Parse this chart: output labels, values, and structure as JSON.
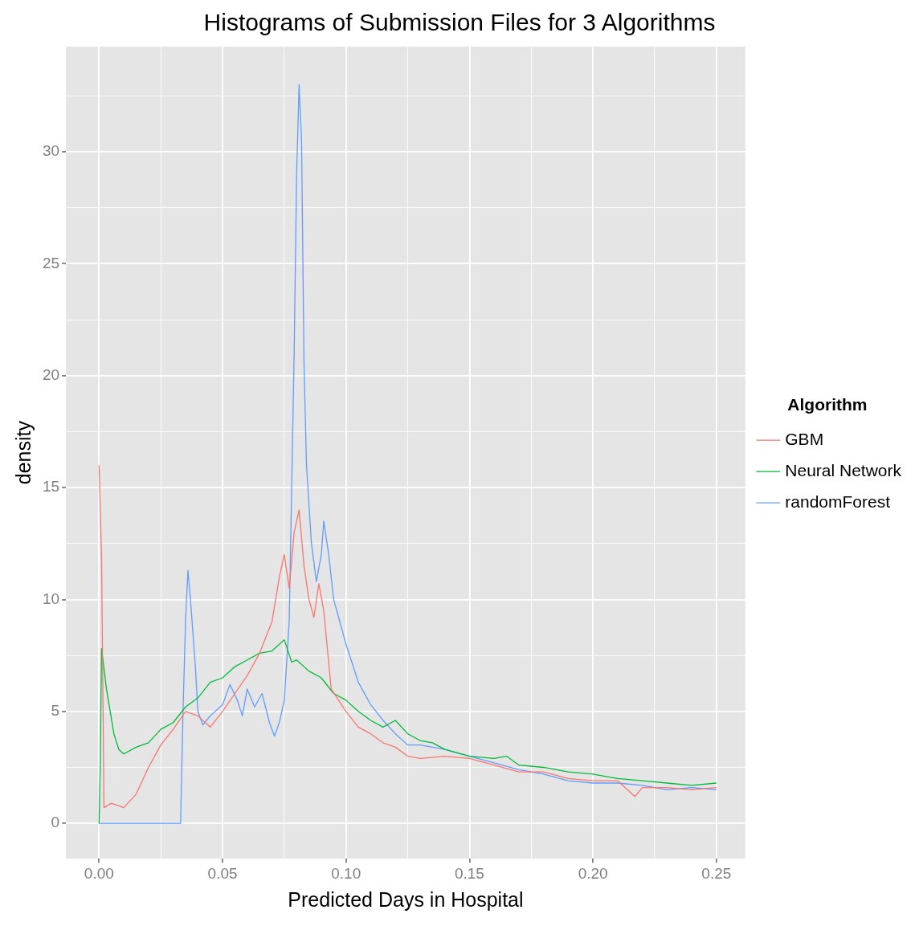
{
  "chart_data": {
    "type": "line",
    "title": "Histograms of Submission Files for 3 Algorithms",
    "xlabel": "Predicted Days in Hospital",
    "ylabel": "density",
    "legend_title": "Algorithm",
    "legend": "right",
    "grid": true,
    "marker": "none",
    "line_style": "solid",
    "xlim": [
      -0.0134,
      0.2617
    ],
    "ylim": [
      -1.58,
      34.7
    ],
    "xticks": [
      {
        "value": 0,
        "label": "0.00"
      },
      {
        "value": 0.025,
        "label": null
      },
      {
        "value": 0.05,
        "label": "0.05"
      },
      {
        "value": 0.075,
        "label": null
      },
      {
        "value": 0.1,
        "label": "0.10"
      },
      {
        "value": 0.125,
        "label": null
      },
      {
        "value": 0.15,
        "label": "0.15"
      },
      {
        "value": 0.175,
        "label": null
      },
      {
        "value": 0.2,
        "label": "0.20"
      },
      {
        "value": 0.225,
        "label": null
      },
      {
        "value": 0.25,
        "label": "0.25"
      }
    ],
    "yticks": [
      0,
      {
        "value": 2.5,
        "label": null
      },
      5,
      {
        "value": 7.5,
        "label": null
      },
      10,
      {
        "value": 12.5,
        "label": null
      },
      15,
      {
        "value": 17.5,
        "label": null
      },
      20,
      {
        "value": 22.5,
        "label": null
      },
      25,
      {
        "value": 27.5,
        "label": null
      },
      30,
      {
        "value": 32.5,
        "label": null
      }
    ],
    "series": [
      {
        "name": "GBM",
        "color": "#f8766d",
        "x": [
          0,
          0.001,
          0.002,
          0.005,
          0.01,
          0.015,
          0.02,
          0.025,
          0.03,
          0.035,
          0.04,
          0.045,
          0.05,
          0.055,
          0.06,
          0.065,
          0.07,
          0.073,
          0.075,
          0.077,
          0.079,
          0.081,
          0.083,
          0.085,
          0.087,
          0.089,
          0.091,
          0.094,
          0.097,
          0.1,
          0.105,
          0.11,
          0.115,
          0.12,
          0.125,
          0.13,
          0.14,
          0.15,
          0.16,
          0.17,
          0.18,
          0.19,
          0.2,
          0.21,
          0.217,
          0.22,
          0.23,
          0.24,
          0.25
        ],
        "values": [
          16,
          12,
          0.7,
          0.9,
          0.7,
          1.3,
          2.5,
          3.5,
          4.2,
          5,
          4.8,
          4.3,
          5,
          5.8,
          6.6,
          7.6,
          9,
          11,
          12,
          10.5,
          13,
          14,
          11.5,
          10,
          9.2,
          10.7,
          9.5,
          6,
          5.5,
          5,
          4.3,
          4,
          3.6,
          3.4,
          3,
          2.9,
          3,
          2.9,
          2.6,
          2.3,
          2.3,
          2,
          1.9,
          1.9,
          1.2,
          1.6,
          1.6,
          1.5,
          1.6
        ]
      },
      {
        "name": "Neural Network",
        "color": "#00ba38",
        "x": [
          0,
          0.0005,
          0.001,
          0.003,
          0.006,
          0.008,
          0.01,
          0.015,
          0.02,
          0.025,
          0.03,
          0.035,
          0.04,
          0.045,
          0.05,
          0.055,
          0.06,
          0.065,
          0.07,
          0.075,
          0.078,
          0.08,
          0.085,
          0.09,
          0.095,
          0.1,
          0.105,
          0.11,
          0.115,
          0.12,
          0.125,
          0.13,
          0.135,
          0.14,
          0.15,
          0.16,
          0.165,
          0.17,
          0.18,
          0.19,
          0.2,
          0.21,
          0.22,
          0.23,
          0.24,
          0.25
        ],
        "values": [
          0,
          2.7,
          7.8,
          6,
          4,
          3.3,
          3.1,
          3.4,
          3.6,
          4.2,
          4.5,
          5.2,
          5.6,
          6.3,
          6.5,
          7,
          7.3,
          7.6,
          7.7,
          8.2,
          7.2,
          7.3,
          6.8,
          6.5,
          5.8,
          5.5,
          5,
          4.6,
          4.3,
          4.6,
          4,
          3.7,
          3.6,
          3.3,
          3,
          2.9,
          3,
          2.6,
          2.5,
          2.3,
          2.2,
          2,
          1.9,
          1.8,
          1.7,
          1.8
        ]
      },
      {
        "name": "randomForest",
        "color": "#619cff",
        "x": [
          0,
          0.033,
          0.034,
          0.035,
          0.036,
          0.037,
          0.039,
          0.04,
          0.042,
          0.045,
          0.05,
          0.053,
          0.056,
          0.058,
          0.06,
          0.063,
          0.066,
          0.069,
          0.071,
          0.073,
          0.075,
          0.077,
          0.078,
          0.079,
          0.08,
          0.081,
          0.082,
          0.083,
          0.084,
          0.086,
          0.088,
          0.09,
          0.091,
          0.093,
          0.095,
          0.1,
          0.105,
          0.11,
          0.115,
          0.12,
          0.125,
          0.13,
          0.14,
          0.15,
          0.16,
          0.17,
          0.18,
          0.19,
          0.2,
          0.21,
          0.22,
          0.23,
          0.24,
          0.25
        ],
        "values": [
          0,
          0,
          5,
          9,
          11.3,
          10,
          7,
          5,
          4.4,
          4.8,
          5.3,
          6.2,
          5.5,
          4.8,
          6,
          5.2,
          5.8,
          4.5,
          3.9,
          4.5,
          5.5,
          9,
          15,
          21,
          29,
          33,
          30.5,
          20.5,
          16,
          12.5,
          10.8,
          12,
          13.5,
          12,
          10,
          8,
          6.3,
          5.3,
          4.6,
          4,
          3.5,
          3.5,
          3.3,
          3,
          2.7,
          2.4,
          2.2,
          1.9,
          1.8,
          1.8,
          1.7,
          1.5,
          1.6,
          1.5
        ]
      }
    ]
  }
}
